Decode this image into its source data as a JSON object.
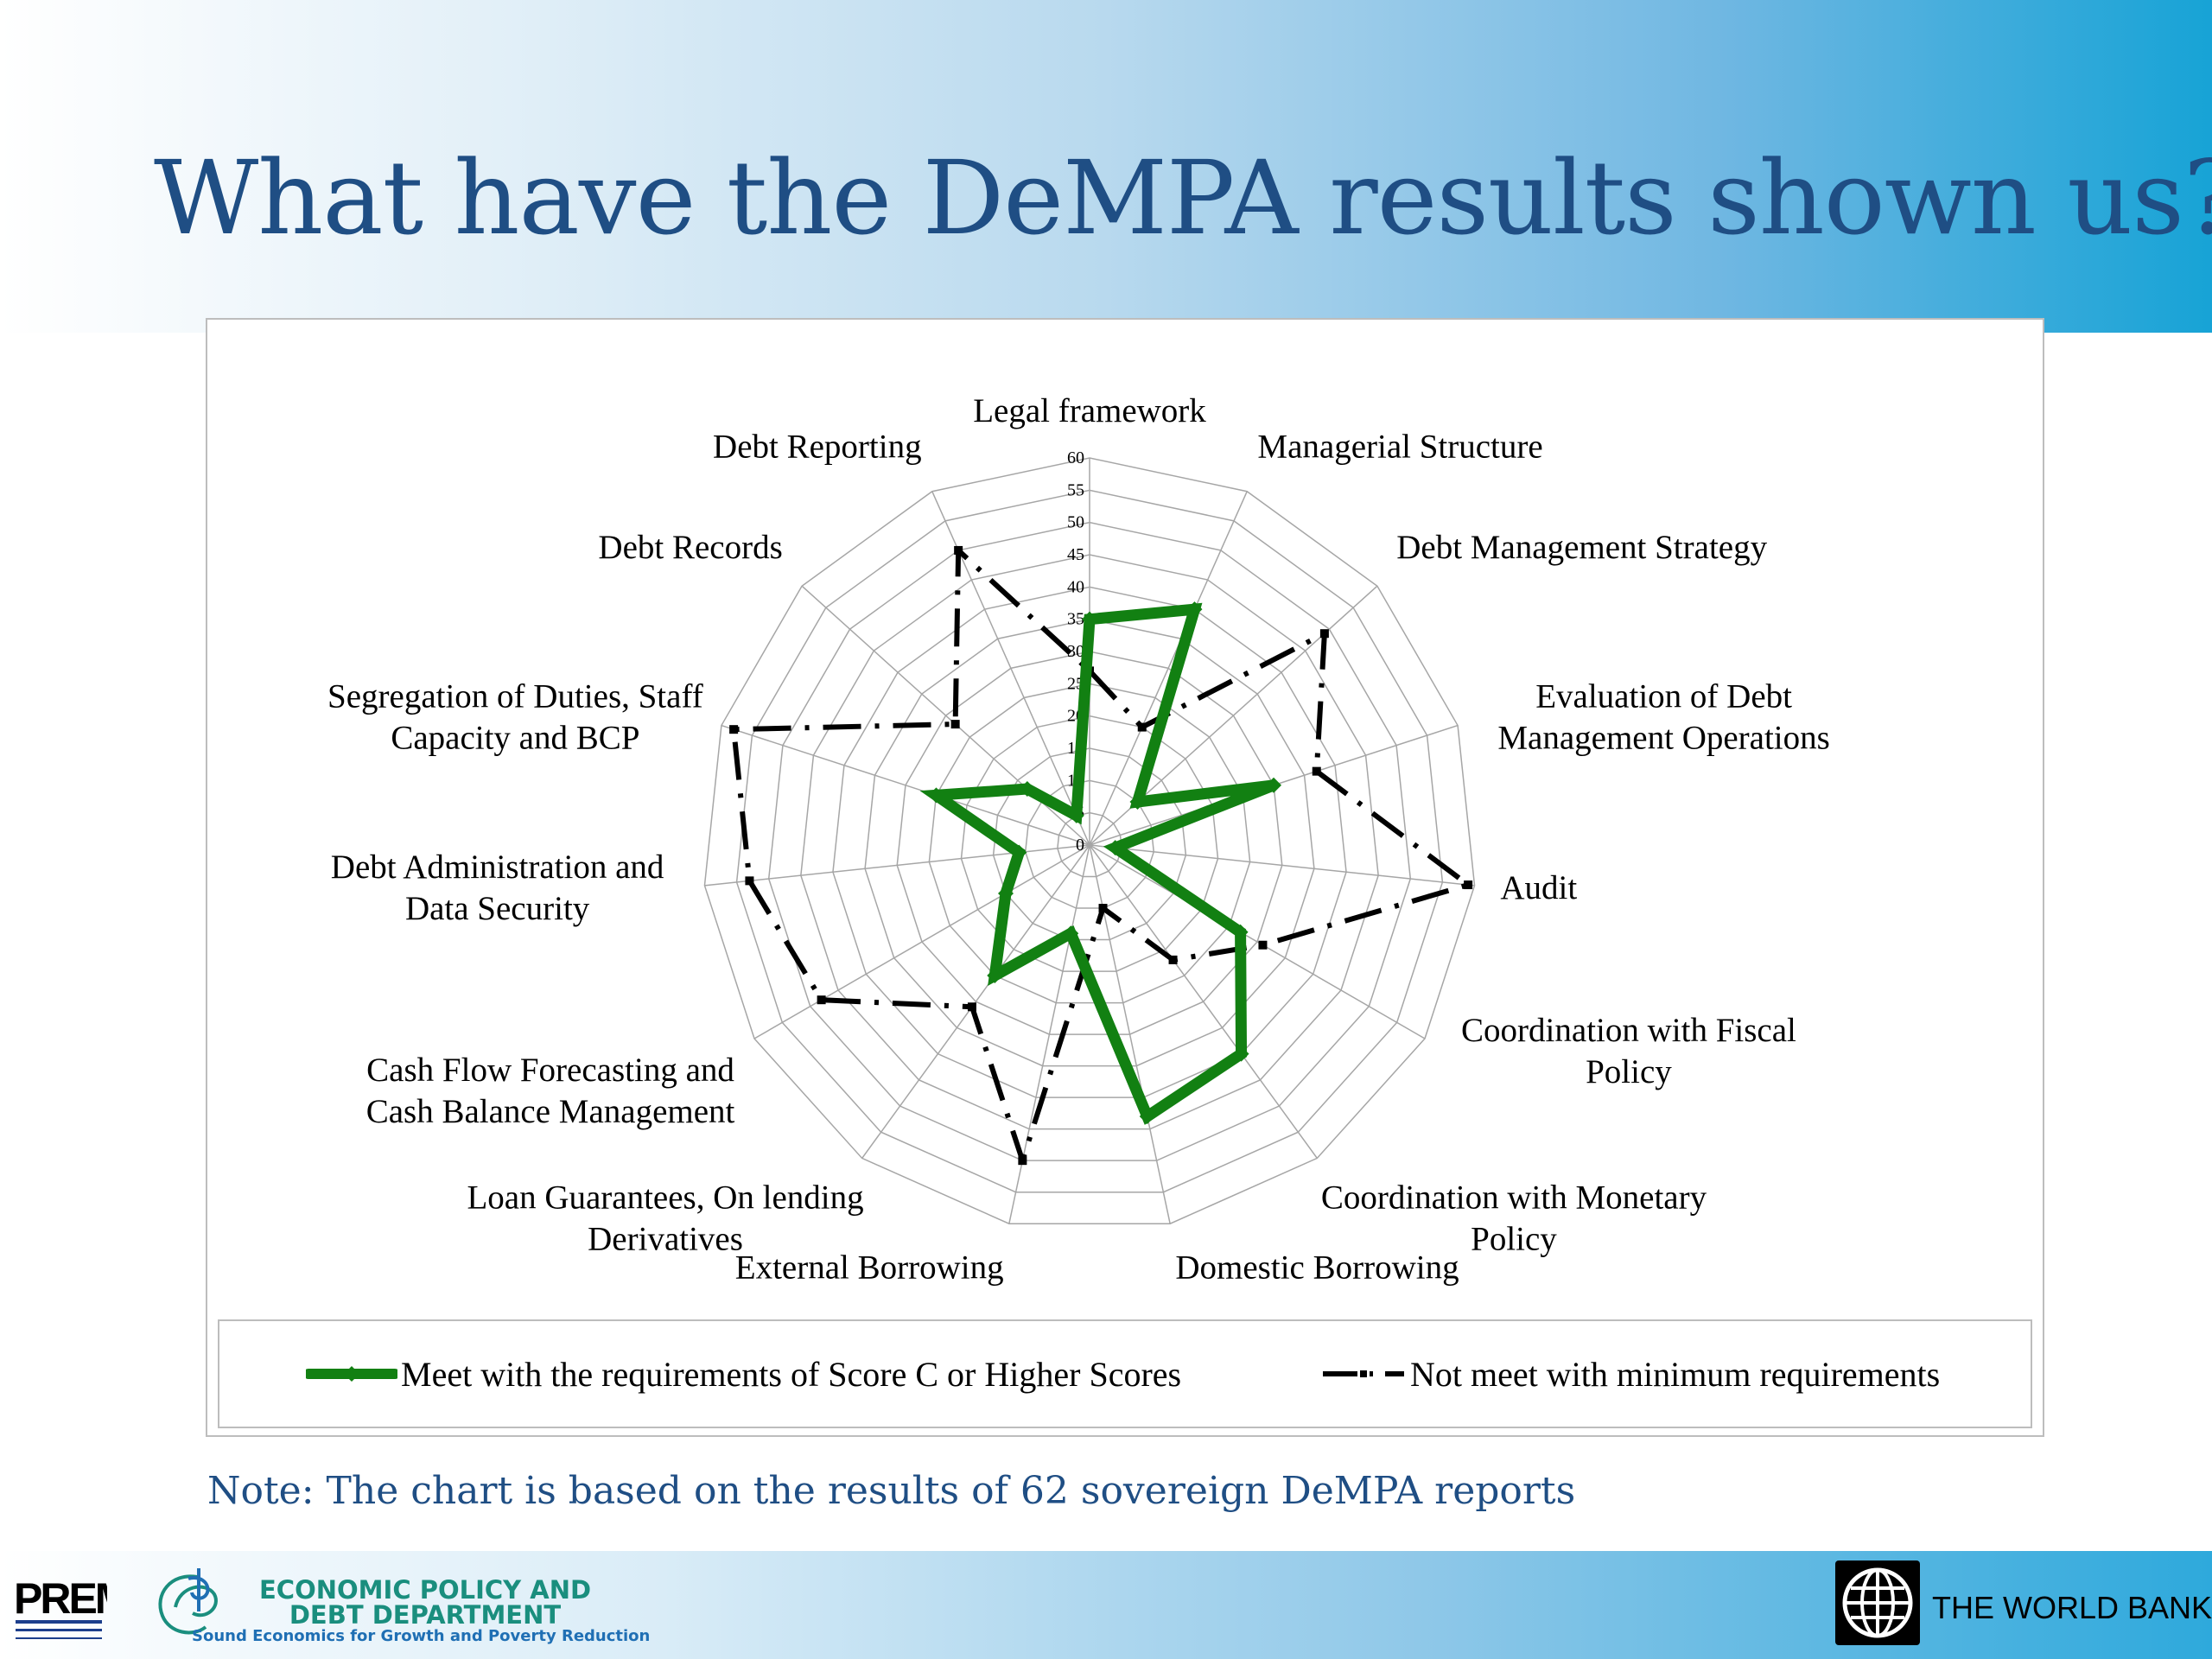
{
  "slide": {
    "title": "What have the DeMPA results shown us?",
    "note": "Note: The chart is based on the results of 62 sovereign DeMPA reports"
  },
  "footer": {
    "prem_logo_text": "PREM",
    "department_name_line1": "ECONOMIC POLICY AND",
    "department_name_line2": "DEBT DEPARTMENT",
    "department_tagline": "Sound Economics for Growth and Poverty Reduction",
    "world_bank_label": "THE WORLD BANK",
    "icons": [
      "prem-logo-icon",
      "epd-logo-icon",
      "world-bank-globe-icon"
    ]
  },
  "colors": {
    "title": "#1f4e84",
    "series_meet": "#128012",
    "series_not_meet": "#000000",
    "grid": "#a6a6a6"
  },
  "chart_data": {
    "type": "radar",
    "r_ticks": [
      0,
      5,
      10,
      15,
      20,
      25,
      30,
      35,
      40,
      45,
      50,
      55,
      60
    ],
    "r_range": [
      0,
      60
    ],
    "categories": [
      "Legal framework",
      "Managerial Structure",
      "Debt Management Strategy",
      "Evaluation of Debt Management Operations",
      "Audit",
      "Coordination with Fiscal Policy",
      "Coordination with Monetary Policy",
      "Domestic Borrowing",
      "External Borrowing",
      "Loan Guarantees, On lending Derivatives",
      "Cash Flow Forecasting and Cash Balance Management",
      "Debt Administration and Data Security",
      "Segregation of Duties, Staff Capacity and BCP",
      "Debt Records",
      "Debt Reporting"
    ],
    "category_lines": [
      [
        "Legal framework"
      ],
      [
        "Managerial Structure"
      ],
      [
        "Debt Management Strategy"
      ],
      [
        "Evaluation of Debt",
        "Management Operations"
      ],
      [
        "Audit"
      ],
      [
        "Coordination with Fiscal",
        "Policy"
      ],
      [
        "Coordination with Monetary",
        "Policy"
      ],
      [
        "Domestic Borrowing"
      ],
      [
        "External Borrowing"
      ],
      [
        "Loan Guarantees, On lending",
        "Derivatives"
      ],
      [
        "Cash Flow Forecasting and",
        "Cash Balance Management"
      ],
      [
        "Debt Administration and",
        "Data Security"
      ],
      [
        "Segregation of Duties, Staff",
        "Capacity and BCP"
      ],
      [
        "Debt Records"
      ],
      [
        "Debt Reporting"
      ]
    ],
    "series": [
      {
        "name": "Meet with the requirements of Score C or Higher Scores",
        "values": [
          35,
          40,
          10,
          30,
          4,
          27,
          40,
          43,
          14,
          25,
          15,
          11,
          25,
          13,
          5
        ]
      },
      {
        "name": "Not meet with minimum requirements",
        "values": [
          27,
          20,
          49,
          37,
          59,
          31,
          22,
          10,
          50,
          31,
          48,
          53,
          58,
          28,
          50
        ]
      }
    ],
    "legend_position": "bottom",
    "grid": true
  }
}
